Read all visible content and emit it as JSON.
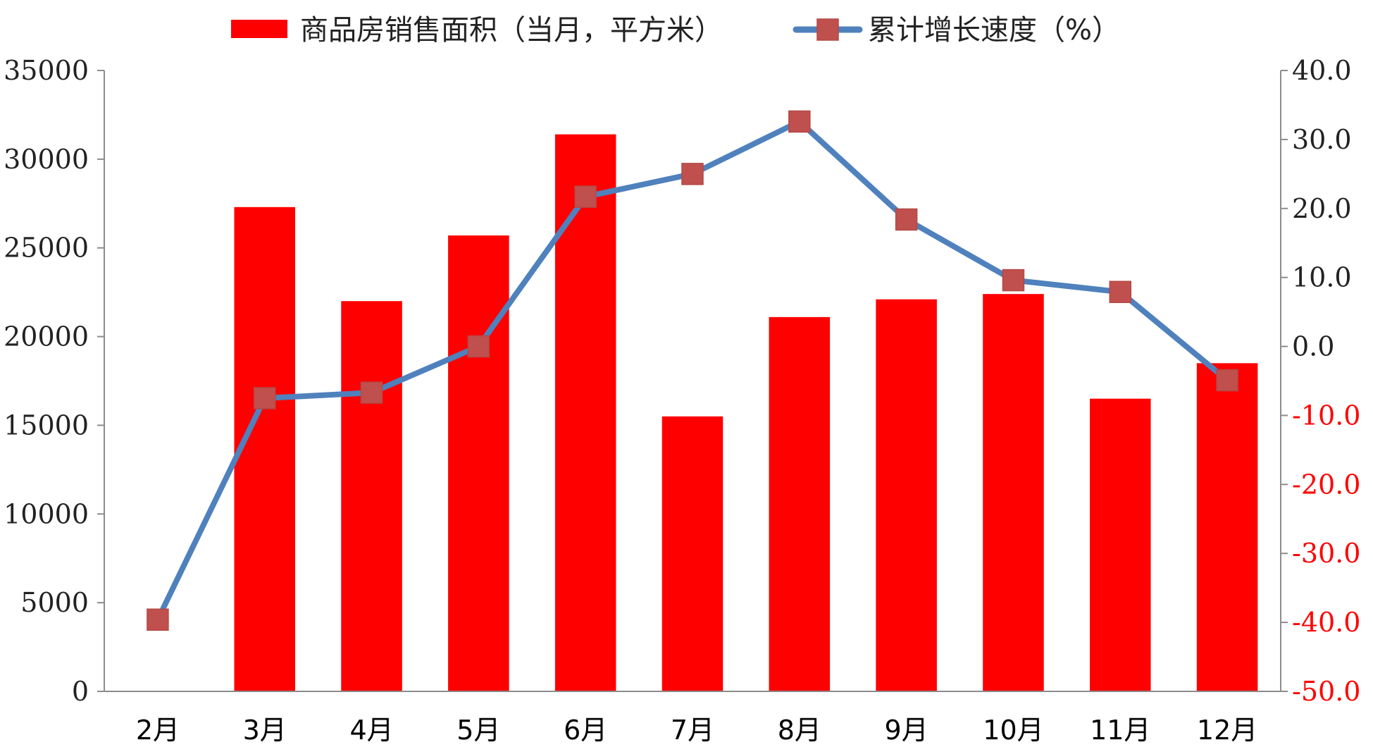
{
  "chart_data": {
    "type": "bar",
    "categories": [
      "2月",
      "3月",
      "4月",
      "5月",
      "6月",
      "7月",
      "8月",
      "9月",
      "10月",
      "11月",
      "12月"
    ],
    "series": [
      {
        "name": "商品房销售面积（当月，平方米）",
        "type": "bar",
        "axis": "left",
        "color": "#ff0000",
        "values": [
          null,
          27300,
          22000,
          25700,
          31400,
          15500,
          21100,
          22100,
          22400,
          16500,
          18500
        ]
      },
      {
        "name": "累计增长速度（%）",
        "type": "line",
        "axis": "right",
        "color": "#4f81bd",
        "marker_color": "#c0504d",
        "values": [
          -39.6,
          -7.5,
          -6.7,
          0.0,
          21.7,
          25.0,
          32.6,
          18.4,
          9.6,
          7.9,
          -4.9
        ]
      }
    ],
    "y_left": {
      "ylim": [
        0,
        35000
      ],
      "ticks": [
        "0",
        "5000",
        "10000",
        "15000",
        "20000",
        "25000",
        "30000",
        "35000"
      ]
    },
    "y_right": {
      "ylim": [
        -50,
        40
      ],
      "ticks": [
        "-50.0",
        "-40.0",
        "-30.0",
        "-20.0",
        "-10.0",
        "0.0",
        "10.0",
        "20.0",
        "30.0",
        "40.0"
      ],
      "negative_color": "#ff0000"
    },
    "grid": false,
    "legend": "top-center"
  }
}
